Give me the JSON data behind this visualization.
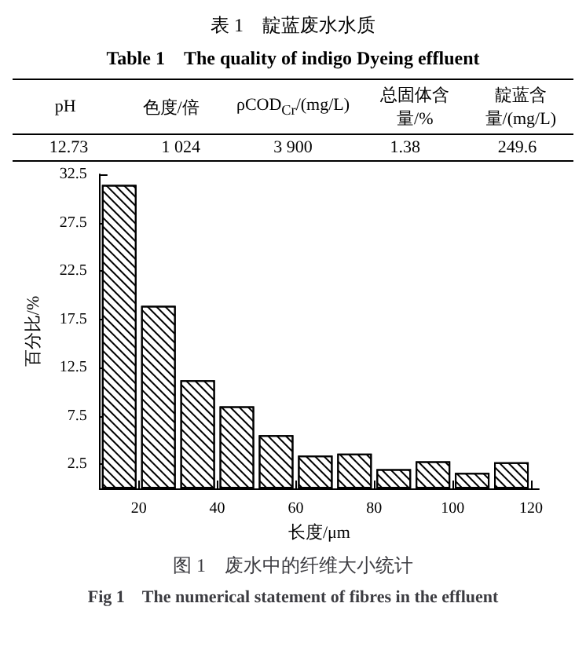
{
  "chart_data": [
    {
      "type": "other",
      "title": "表 1　靛蓝废水水质",
      "subtitle": "Table 1　The quality of indigo Dyeing effluent",
      "annotations": [
        "pH",
        "色度/倍",
        "ρCOD$_{Cr}$/(mg/L)",
        "总固体含量/%",
        "靛蓝含量/(mg/L)",
        "12.73",
        "1 024",
        "3 900",
        "1.38",
        "249.6"
      ]
    },
    {
      "type": "bar",
      "title": "图 1　废水中的纤维大小统计",
      "subtitle": "Fig 1　The numerical statement of fibres in the effluent",
      "xlabel": "长度/μm",
      "ylabel": "百分比/%",
      "x": [
        15,
        25,
        35,
        45,
        55,
        65,
        75,
        85,
        95,
        105,
        115
      ],
      "values": [
        31.4,
        18.9,
        11.2,
        8.5,
        5.5,
        3.4,
        3.6,
        2.0,
        2.8,
        1.6,
        2.7
      ],
      "color": "#000000",
      "xlim": [
        10,
        122
      ],
      "xticks": [
        20,
        40,
        60,
        80,
        100,
        120
      ],
      "ylim": [
        0,
        32.5
      ],
      "yticks": [
        2.5,
        7.5,
        12.5,
        17.5,
        22.5,
        27.5,
        32.5
      ],
      "grid": false
    }
  ]
}
